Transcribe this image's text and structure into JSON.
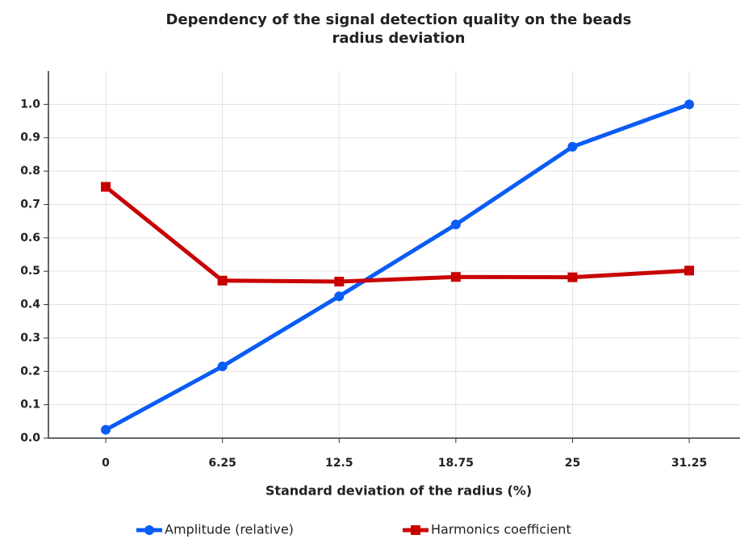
{
  "chart_data": {
    "type": "line",
    "title": [
      "Dependency of the signal detection quality on the beads",
      "radius deviation"
    ],
    "x_label": "Standard deviation of the radius (%)",
    "x": [
      0,
      6.25,
      12.5,
      18.75,
      25,
      31.25
    ],
    "series": [
      {
        "name": "Amplitude (relative)",
        "color": "#0a5cf5",
        "marker": "circle",
        "values": [
          0.025,
          0.215,
          0.425,
          0.64,
          0.873,
          1.0
        ]
      },
      {
        "name": "Harmonics coefficient",
        "color": "#c80000",
        "marker": "square",
        "values": [
          0.753,
          0.472,
          0.469,
          0.483,
          0.482,
          0.502
        ]
      }
    ],
    "xlim": [
      -3.07,
      33.97
    ],
    "xticks": [
      0,
      6.25,
      12.5,
      18.75,
      25,
      31.25
    ],
    "ylim": [
      0,
      1.1
    ],
    "yticks": [
      {
        "value": 0,
        "label": "0.0"
      },
      0.1,
      0.2,
      0.3,
      0.4,
      0.5,
      0.6,
      0.7,
      0.8,
      0.9,
      {
        "value": 1,
        "label": "1.0"
      }
    ],
    "grid": true,
    "legend": "bottom"
  }
}
